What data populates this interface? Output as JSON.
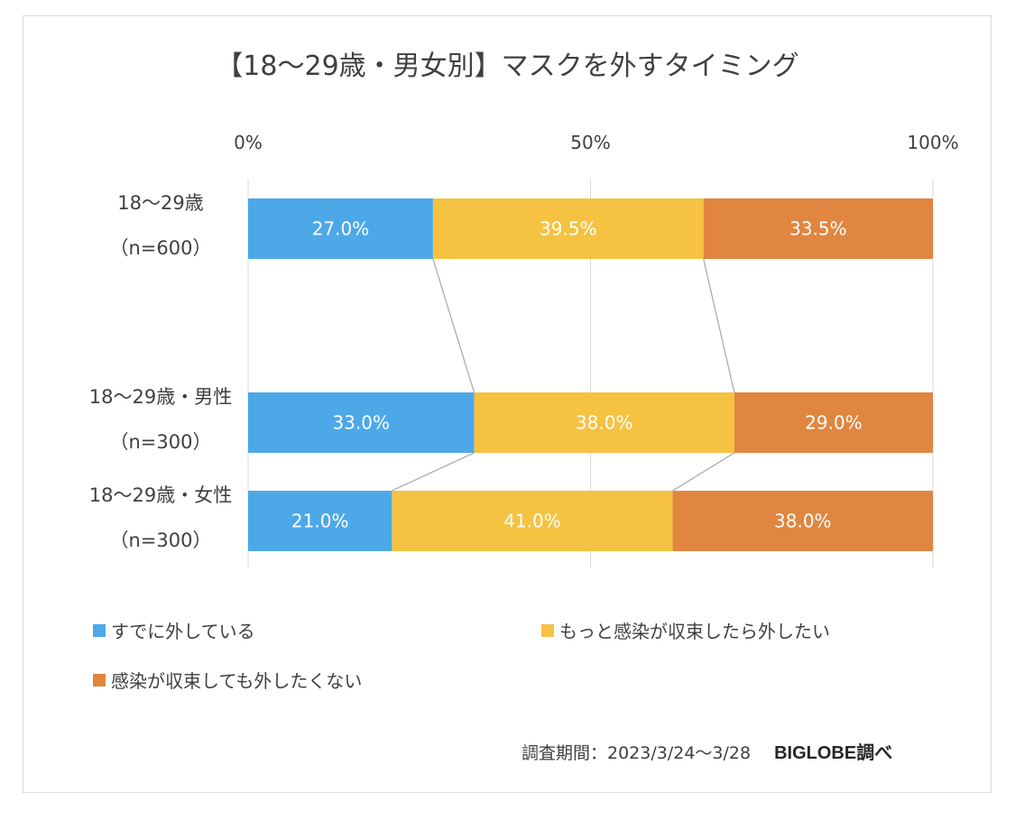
{
  "colors": {
    "series1": "#4da8e8",
    "series2": "#f5c242",
    "series3": "#e08640",
    "grid": "#d9d9d9",
    "connector": "#a6a6a6"
  },
  "chart_data": {
    "type": "bar",
    "orientation": "horizontal",
    "stacked": true,
    "title": "【18～29歳・男女別】マスクを外すタイミング",
    "xlim": [
      0,
      100
    ],
    "ticks": [
      "0%",
      "50%",
      "100%"
    ],
    "grid": true,
    "legend_position": "bottom",
    "categories": [
      [
        "18～29歳",
        "（n=600）"
      ],
      [
        "18～29歳・男性",
        "（n=300）"
      ],
      [
        "18～29歳・女性",
        "（n=300）"
      ]
    ],
    "series": [
      {
        "name": "すでに外している",
        "values": [
          27.0,
          33.0,
          21.0
        ],
        "labels": [
          "27.0%",
          "33.0%",
          "21.0%"
        ]
      },
      {
        "name": "もっと感染が収束したら外したい",
        "values": [
          39.5,
          38.0,
          41.0
        ],
        "labels": [
          "39.5%",
          "38.0%",
          "41.0%"
        ]
      },
      {
        "name": "感染が収束しても外したくない",
        "values": [
          33.5,
          29.0,
          38.0
        ],
        "labels": [
          "33.5%",
          "29.0%",
          "38.0%"
        ]
      }
    ]
  },
  "footer": {
    "period": "調査期間：2023/3/24～3/28",
    "source": "BIGLOBE調べ"
  }
}
